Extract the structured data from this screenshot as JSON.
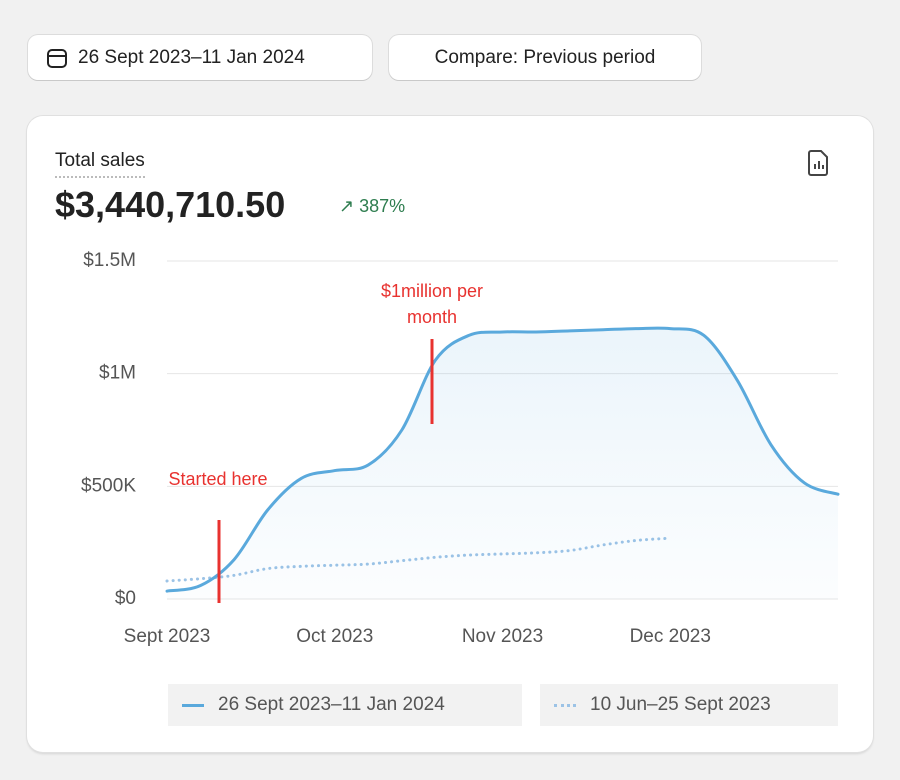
{
  "toolbar": {
    "date_range": "26 Sept 2023–11 Jan 2024",
    "compare": "Compare: Previous period"
  },
  "card": {
    "title": "Total sales",
    "total": "$3,440,710.50",
    "change": "387%"
  },
  "chart_data": {
    "type": "line",
    "categories": [
      "Sept 2023",
      null,
      null,
      null,
      null,
      "Oct 2023",
      null,
      null,
      null,
      null,
      "Nov 2023",
      null,
      null,
      null,
      null,
      "Dec 2023",
      null,
      null,
      null,
      null,
      null
    ],
    "series": [
      {
        "name": "26 Sept 2023–11 Jan 2024",
        "color": "#5aa9dc",
        "style": "solid",
        "values": [
          35000,
          60000,
          175000,
          395000,
          535000,
          570000,
          595000,
          750000,
          1060000,
          1170000,
          1185000,
          1185000,
          1190000,
          1195000,
          1200000,
          1200000,
          1170000,
          970000,
          685000,
          515000,
          465000
        ]
      },
      {
        "name": "10 Jun–25 Sept 2023",
        "color": "#9cc3e6",
        "style": "dotted",
        "values": [
          80000,
          90000,
          105000,
          135000,
          145000,
          150000,
          155000,
          170000,
          185000,
          195000,
          200000,
          205000,
          215000,
          240000,
          260000,
          270000,
          null,
          null,
          null,
          null,
          null
        ]
      }
    ],
    "ylim": [
      0,
      1500000
    ],
    "yticks": [
      {
        "value": 0,
        "label": "$0"
      },
      {
        "value": 500000,
        "label": "$500K"
      },
      {
        "value": 1000000,
        "label": "$1M"
      },
      {
        "value": 1500000,
        "label": "$1.5M"
      }
    ],
    "grid": true,
    "annotations": [
      "Started here",
      "$1million per month"
    ]
  }
}
